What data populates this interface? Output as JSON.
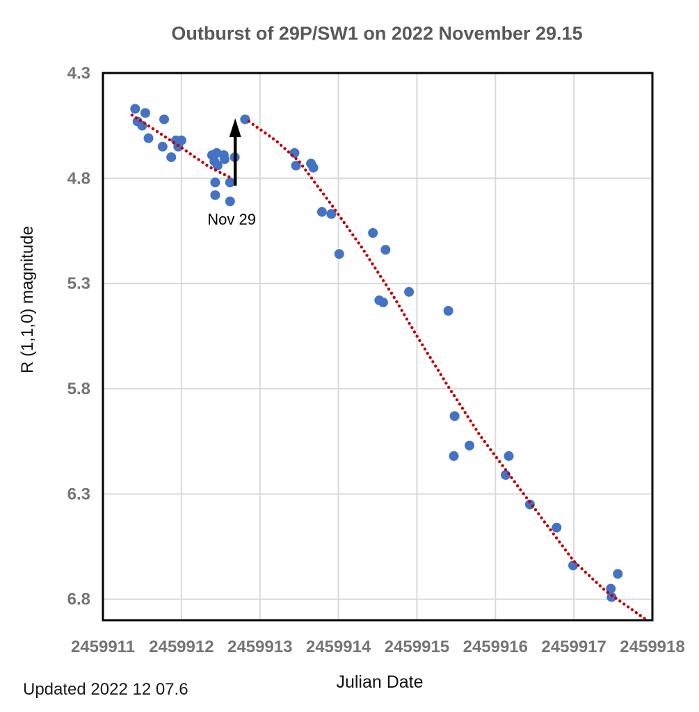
{
  "footer": {
    "updated": "Updated 2022 12 07.6"
  },
  "chart_data": {
    "type": "scatter",
    "title": "Outburst of 29P/SW1 on 2022 November 29.15",
    "xlabel": "Julian Date",
    "ylabel": "R (1,1,0) magnitude",
    "xlim": [
      2459911,
      2459918
    ],
    "ylim": [
      4.3,
      6.9
    ],
    "y_inverted": true,
    "grid": true,
    "legend": "none",
    "x_ticks": [
      2459911,
      2459912,
      2459913,
      2459914,
      2459915,
      2459916,
      2459917,
      2459918
    ],
    "y_ticks": [
      4.3,
      4.8,
      5.3,
      5.8,
      6.3,
      6.8
    ],
    "colors": {
      "point": "#4472C4",
      "trend": "#C00000",
      "grid": "#D9D9D9",
      "border": "#000000",
      "title": "#595959",
      "tick": "#757575",
      "arrow": "#000000"
    },
    "series": [
      {
        "name": "R (1,1,0) magnitude observations",
        "type": "scatter",
        "color": "#4472C4",
        "marker_radius": 7,
        "points": [
          [
            2459911.41,
            4.47
          ],
          [
            2459911.44,
            4.53
          ],
          [
            2459911.5,
            4.55
          ],
          [
            2459911.54,
            4.49
          ],
          [
            2459911.58,
            4.61
          ],
          [
            2459911.76,
            4.65
          ],
          [
            2459911.78,
            4.52
          ],
          [
            2459911.87,
            4.7
          ],
          [
            2459911.93,
            4.62
          ],
          [
            2459911.96,
            4.65
          ],
          [
            2459912.0,
            4.62
          ],
          [
            2459912.39,
            4.69
          ],
          [
            2459912.42,
            4.72
          ],
          [
            2459912.43,
            4.82
          ],
          [
            2459912.43,
            4.88
          ],
          [
            2459912.45,
            4.68
          ],
          [
            2459912.46,
            4.74
          ],
          [
            2459912.54,
            4.69
          ],
          [
            2459912.55,
            4.71
          ],
          [
            2459912.62,
            4.82
          ],
          [
            2459912.62,
            4.91
          ],
          [
            2459912.68,
            4.7
          ],
          [
            2459912.81,
            4.52
          ],
          [
            2459913.44,
            4.68
          ],
          [
            2459913.46,
            4.74
          ],
          [
            2459913.65,
            4.73
          ],
          [
            2459913.68,
            4.75
          ],
          [
            2459913.79,
            4.96
          ],
          [
            2459913.91,
            4.97
          ],
          [
            2459914.01,
            5.16
          ],
          [
            2459914.44,
            5.06
          ],
          [
            2459914.52,
            5.38
          ],
          [
            2459914.57,
            5.39
          ],
          [
            2459914.6,
            5.14
          ],
          [
            2459914.9,
            5.34
          ],
          [
            2459915.4,
            5.43
          ],
          [
            2459915.47,
            6.12
          ],
          [
            2459915.48,
            5.93
          ],
          [
            2459915.67,
            6.07
          ],
          [
            2459916.13,
            6.21
          ],
          [
            2459916.17,
            6.12
          ],
          [
            2459916.44,
            6.35
          ],
          [
            2459916.78,
            6.46
          ],
          [
            2459916.99,
            6.64
          ],
          [
            2459917.47,
            6.75
          ],
          [
            2459917.48,
            6.79
          ],
          [
            2459917.56,
            6.68
          ]
        ]
      },
      {
        "name": "trend pre-outburst",
        "type": "dotted-line",
        "color": "#C00000",
        "points": [
          [
            2459911.37,
            4.5
          ],
          [
            2459911.7,
            4.58
          ],
          [
            2459912.0,
            4.655
          ],
          [
            2459912.35,
            4.745
          ],
          [
            2459912.64,
            4.8
          ]
        ]
      },
      {
        "name": "trend post-outburst",
        "type": "dotted-line",
        "color": "#C00000",
        "points": [
          [
            2459912.86,
            4.53
          ],
          [
            2459913.2,
            4.62
          ],
          [
            2459913.5,
            4.72
          ],
          [
            2459913.9,
            4.92
          ],
          [
            2459914.3,
            5.13
          ],
          [
            2459914.7,
            5.36
          ],
          [
            2459915.0,
            5.55
          ],
          [
            2459915.4,
            5.79
          ],
          [
            2459915.8,
            6.02
          ],
          [
            2459916.2,
            6.22
          ],
          [
            2459916.6,
            6.42
          ],
          [
            2459917.0,
            6.62
          ],
          [
            2459917.4,
            6.76
          ],
          [
            2459917.93,
            6.9
          ]
        ]
      }
    ],
    "annotations": [
      {
        "type": "arrow",
        "name": "outburst-arrow",
        "x": 2459912.685,
        "y_tail": 4.835,
        "y_tip": 4.515
      },
      {
        "type": "text",
        "label": "Nov 29",
        "x": 2459912.64,
        "y": 5.02
      }
    ]
  }
}
